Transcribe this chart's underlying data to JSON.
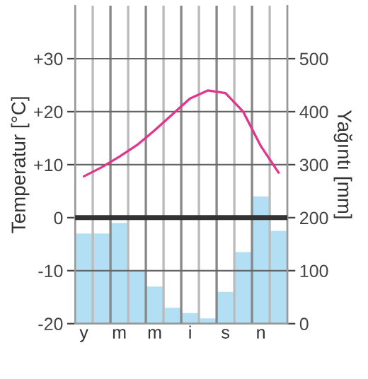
{
  "chart_data": {
    "type": "bar",
    "ylabel": "Temperatur [°C]",
    "y2label": "Yağıntı [mm]",
    "categories": [
      "y",
      null,
      "m",
      null,
      "m",
      null,
      "i",
      null,
      "s",
      null,
      "n",
      null
    ],
    "series": [
      {
        "axis": "y2",
        "color": "#b3dff4",
        "values": [
          170,
          170,
          190,
          100,
          70,
          30,
          20,
          10,
          60,
          135,
          240,
          175
        ]
      },
      {
        "type": "line",
        "axis": "y",
        "color": "#e0368c",
        "values": [
          7.8,
          9.5,
          11.5,
          13.7,
          16.5,
          19.5,
          22.5,
          24,
          23.5,
          20,
          13.5,
          8.5
        ]
      }
    ],
    "ylim": [
      -20,
      40
    ],
    "yticks": [
      {
        "value": -20,
        "label": "-20"
      },
      {
        "value": -10,
        "label": "-10"
      },
      0,
      {
        "value": 10,
        "label": "+10"
      },
      {
        "value": 20,
        "label": "+20"
      },
      {
        "value": 30,
        "label": "+30"
      }
    ],
    "y2lim": [
      0,
      600
    ],
    "y2ticks": [
      0,
      100,
      200,
      300,
      400,
      500
    ],
    "ref_lines": [
      {
        "axis": "y",
        "value": 0,
        "color": "#333333"
      }
    ],
    "grid": true,
    "marker": "none",
    "line_style": "solid",
    "legend": false
  }
}
